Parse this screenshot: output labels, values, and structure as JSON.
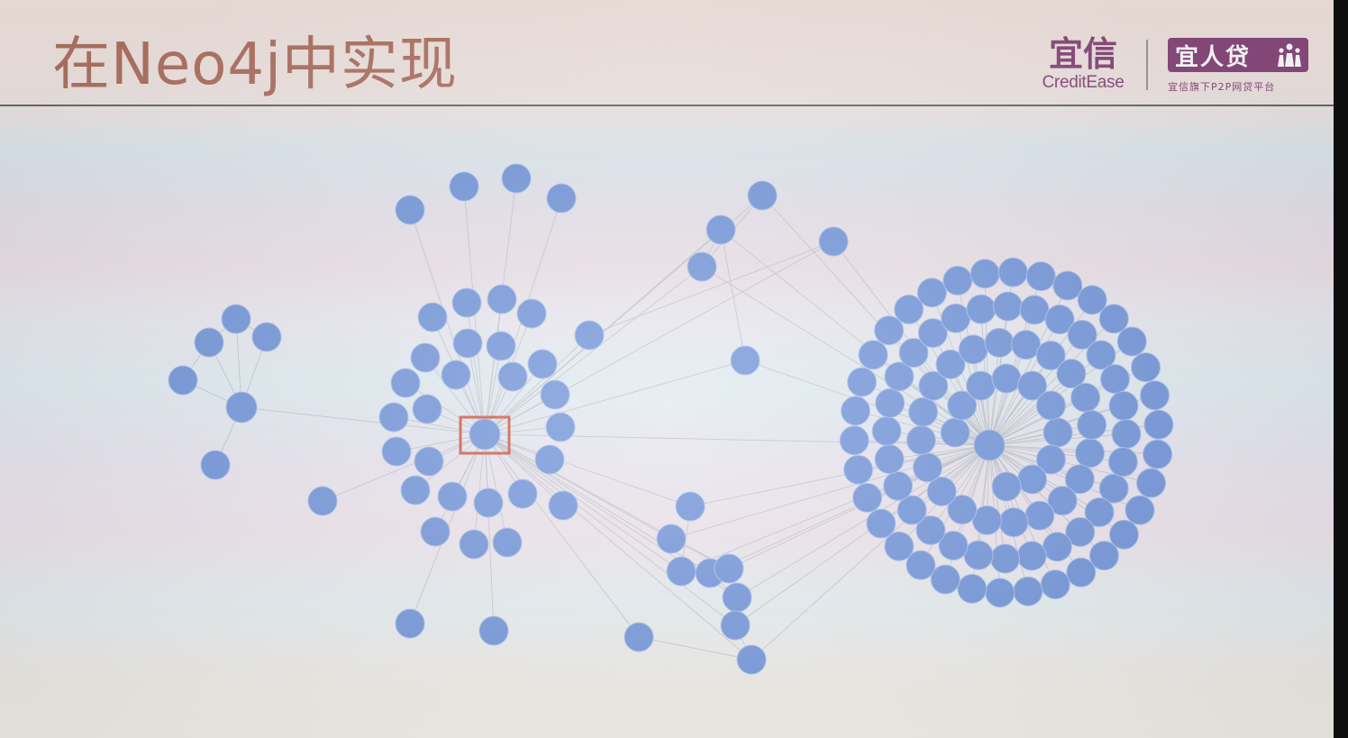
{
  "slide": {
    "title": "在Neo4j中实现"
  },
  "logos": {
    "brand_cn": "宜信",
    "brand_en": "CreditEase",
    "product_cn": "宜人贷",
    "product_tagline": "宜信旗下P2P网贷平台",
    "brand_color": "#8a4a7e"
  },
  "graph": {
    "node_color": "#7194d8",
    "edge_color": "#b9bcc4",
    "highlight_color": "#cf5a42",
    "highlighted_node": "hub-b"
  }
}
